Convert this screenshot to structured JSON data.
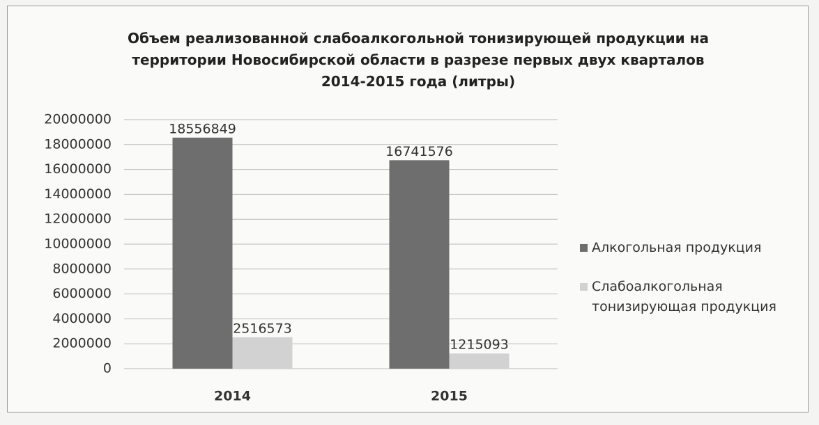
{
  "chart_data": {
    "type": "bar",
    "title": "Объем реализованной слабоалкогольной  тонизирующей продукции на территории Новосибирской области в разрезе первых двух кварталов 2014-2015 года (литры)",
    "categories": [
      "2014",
      "2015"
    ],
    "series": [
      {
        "name": "Алкогольная продукция",
        "color": "#6e6e6e",
        "values": [
          18556849,
          16741576
        ]
      },
      {
        "name": "Слабоалкогольная тонизирующая продукция",
        "color": "#d2d2d2",
        "values": [
          2516573,
          1215093
        ]
      }
    ],
    "ylim": [
      0,
      20000000
    ],
    "yticks": [
      0,
      2000000,
      4000000,
      6000000,
      8000000,
      10000000,
      12000000,
      14000000,
      16000000,
      18000000,
      20000000
    ],
    "grid": true,
    "legend": "right"
  }
}
